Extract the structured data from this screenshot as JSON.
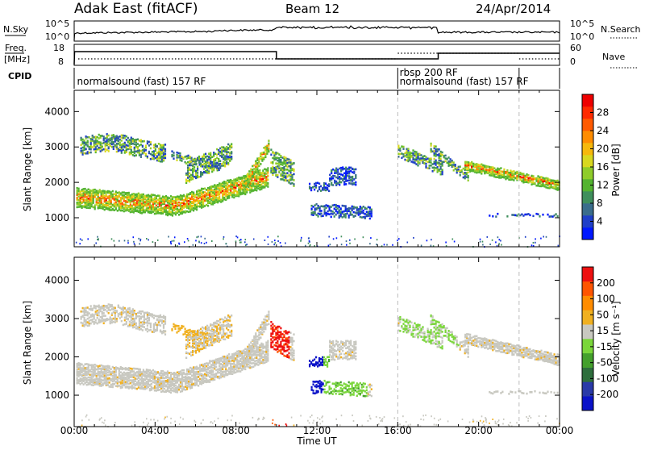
{
  "header": {
    "station": "Adak East (fitACF)",
    "beam": "Beam 12",
    "date": "24/Apr/2014"
  },
  "panel_labels": {
    "nsky": "N.Sky",
    "nsearch": "N.Search",
    "freq": "Freq.",
    "freq_unit": "[MHz]",
    "nave": "Nave",
    "cpid": "CPID",
    "nsky_tick_hi": "10^5",
    "nsky_tick_lo": "10^0",
    "freq_tick_hi": "18",
    "freq_tick_lo": "8",
    "nave_tick_hi": "60",
    "nave_tick_lo": "0"
  },
  "cpid_labels": [
    {
      "text": "normalsound (fast) 157 RF",
      "x_hours": 0.1,
      "row": "low"
    },
    {
      "text": "rbsp 200 RF",
      "x_hours": 16.05,
      "row": "high"
    },
    {
      "text": "normalsound (fast) 157 RF",
      "x_hours": 16.05,
      "row": "low"
    }
  ],
  "cpid_boundaries_hours": [
    16.0,
    22.0
  ],
  "chart_data": [
    {
      "type": "heatmap",
      "name": "power",
      "xlabel": "",
      "ylabel": "Slant Range [km]",
      "x_ticks": [
        "00:00",
        "04:00",
        "08:00",
        "12:00",
        "16:00",
        "20:00",
        "00:00"
      ],
      "x_range_hours": [
        0,
        24
      ],
      "y_ticks": [
        1000,
        2000,
        3000,
        4000
      ],
      "y_range_km": [
        180,
        4600
      ],
      "colorbar": {
        "label": "Power [dB]",
        "ticks": [
          4,
          8,
          12,
          16,
          20,
          24,
          28
        ],
        "range": [
          0,
          32
        ],
        "colors": [
          "#0018ff",
          "#1f3fc8",
          "#3a6d8c",
          "#3f8f5c",
          "#53b330",
          "#8fcc2a",
          "#d8d820",
          "#f6b80c",
          "#ff8c00",
          "#ff5a00",
          "#ff2a00",
          "#ee0000"
        ]
      }
    },
    {
      "type": "heatmap",
      "name": "velocity",
      "xlabel": "Time UT",
      "ylabel": "Slant Range [km]",
      "x_ticks": [
        "00:00",
        "04:00",
        "08:00",
        "12:00",
        "16:00",
        "20:00",
        "00:00"
      ],
      "x_range_hours": [
        0,
        24
      ],
      "y_ticks": [
        1000,
        2000,
        3000,
        4000
      ],
      "y_range_km": [
        180,
        4600
      ],
      "colorbar": {
        "label": "Velocity [m s⁻¹]",
        "ticks": [
          200,
          100,
          50,
          15,
          -15,
          -50,
          -100,
          -200
        ],
        "colors": [
          "#0a12c8",
          "#2a3aa8",
          "#2e6e3c",
          "#44a02c",
          "#7ad63a",
          "#c8c8c0",
          "#f0b020",
          "#ff8c00",
          "#ff5500",
          "#ee1010"
        ]
      }
    }
  ]
}
